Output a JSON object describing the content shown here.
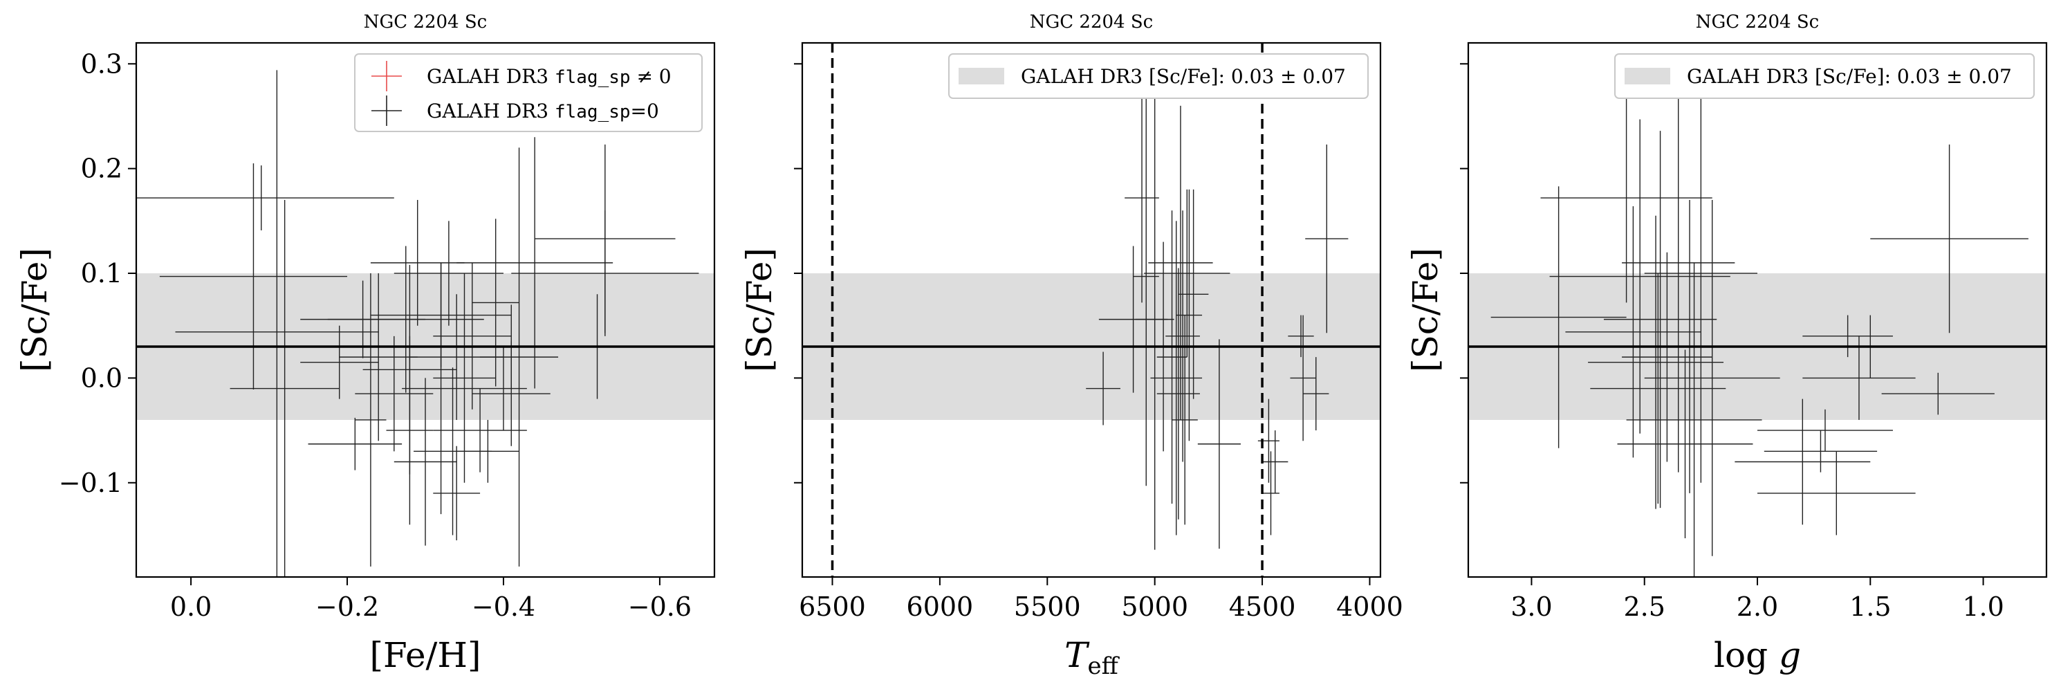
{
  "chart_data": [
    {
      "type": "scatter",
      "title": "NGC 2204 Sc",
      "xlabel": "[Fe/H]",
      "ylabel": "[Sc/Fe]",
      "xlim": [
        0.07,
        -0.67
      ],
      "ylim": [
        -0.19,
        0.32
      ],
      "xticks": [
        "0.0",
        "−0.2",
        "−0.4",
        "−0.6"
      ],
      "xtick_values": [
        0.0,
        -0.2,
        -0.4,
        -0.6
      ],
      "yticks": [
        "−0.1",
        "0.0",
        "0.1",
        "0.2",
        "0.3"
      ],
      "ytick_values": [
        -0.1,
        0.0,
        0.1,
        0.2,
        0.3
      ],
      "show_y_ticklabels": true,
      "legend": {
        "placement": "top-right",
        "entries": [
          {
            "label_prefix": "GALAH DR3 ",
            "code": "flag_sp",
            "label_suffix": " ≠ 0",
            "color": "#e84a4a",
            "marker": "plus"
          },
          {
            "label_prefix": "GALAH DR3 ",
            "code": "flag_sp",
            "label_suffix": "=0",
            "color": "#222222",
            "marker": "plus"
          }
        ]
      },
      "band": {
        "center": 0.03,
        "err": 0.07,
        "color": "#dddddd",
        "line_color": "#000000"
      },
      "vlines": [],
      "series": [
        {
          "points": [
            {
              "x": -0.09,
              "y": 0.172,
              "xerr": 0.17,
              "yerr": 0.031
            },
            {
              "x": -0.08,
              "y": 0.097,
              "xerr": 0.12,
              "yerr": 0.108
            },
            {
              "x": -0.11,
              "y": 0.044,
              "xerr": 0.13,
              "yerr": 0.25
            },
            {
              "x": -0.12,
              "y": -0.01,
              "xerr": 0.07,
              "yerr": 0.18
            },
            {
              "x": -0.19,
              "y": 0.015,
              "xerr": 0.05,
              "yerr": 0.035
            },
            {
              "x": -0.22,
              "y": 0.056,
              "xerr": 0.08,
              "yerr": 0.037
            },
            {
              "x": -0.24,
              "y": 0.02,
              "xerr": 0.05,
              "yerr": 0.08
            },
            {
              "x": -0.21,
              "y": -0.063,
              "xerr": 0.06,
              "yerr": 0.025
            },
            {
              "x": -0.23,
              "y": -0.04,
              "xerr": 0.02,
              "yerr": 0.14
            },
            {
              "x": -0.26,
              "y": -0.015,
              "xerr": 0.05,
              "yerr": 0.055
            },
            {
              "x": -0.275,
              "y": 0.056,
              "xerr": 0.1,
              "yerr": 0.07
            },
            {
              "x": -0.28,
              "y": 0.008,
              "xerr": 0.06,
              "yerr": 0.1
            },
            {
              "x": -0.28,
              "y": -0.05,
              "xerr": 0.03,
              "yerr": 0.09
            },
            {
              "x": -0.29,
              "y": 0.11,
              "xerr": 0.06,
              "yerr": 0.06
            },
            {
              "x": -0.3,
              "y": -0.08,
              "xerr": 0.04,
              "yerr": 0.08
            },
            {
              "x": -0.32,
              "y": -0.01,
              "xerr": 0.05,
              "yerr": 0.12
            },
            {
              "x": -0.32,
              "y": 0.06,
              "xerr": 0.09,
              "yerr": 0.05
            },
            {
              "x": -0.33,
              "y": 0.1,
              "xerr": 0.07,
              "yerr": 0.05
            },
            {
              "x": -0.34,
              "y": 0.02,
              "xerr": 0.06,
              "yerr": 0.06
            },
            {
              "x": -0.335,
              "y": -0.07,
              "xerr": 0.05,
              "yerr": 0.08
            },
            {
              "x": -0.34,
              "y": -0.11,
              "xerr": 0.03,
              "yerr": 0.045
            },
            {
              "x": -0.35,
              "y": 0.0,
              "xerr": 0.04,
              "yerr": 0.1
            },
            {
              "x": -0.36,
              "y": 0.04,
              "xerr": 0.05,
              "yerr": 0.07
            },
            {
              "x": -0.37,
              "y": -0.05,
              "xerr": 0.06,
              "yerr": 0.04
            },
            {
              "x": -0.38,
              "y": -0.07,
              "xerr": 0.04,
              "yerr": 0.03
            },
            {
              "x": -0.39,
              "y": 0.072,
              "xerr": 0.03,
              "yerr": 0.08
            },
            {
              "x": -0.4,
              "y": -0.01,
              "xerr": 0.03,
              "yerr": 0.04
            },
            {
              "x": -0.41,
              "y": 0.03,
              "xerr": 0.03,
              "yerr": 0.04
            },
            {
              "x": -0.42,
              "y": 0.02,
              "xerr": 0.05,
              "yerr": 0.2
            },
            {
              "x": -0.44,
              "y": 0.11,
              "xerr": 0.1,
              "yerr": 0.12
            },
            {
              "x": -0.41,
              "y": -0.015,
              "xerr": 0.05,
              "yerr": 0.05
            },
            {
              "x": -0.53,
              "y": 0.133,
              "xerr": 0.09,
              "yerr": 0.09
            },
            {
              "x": -0.53,
              "y": 0.1,
              "xerr": 0.12,
              "yerr": 0.06
            },
            {
              "x": -0.52,
              "y": 0.03,
              "xerr": 0.06,
              "yerr": 0.05
            }
          ]
        }
      ]
    },
    {
      "type": "scatter",
      "title": "NGC 2204 Sc",
      "xlabel": "T_eff",
      "ylabel": "[Sc/Fe]",
      "xlim": [
        6640,
        3950
      ],
      "ylim": [
        -0.19,
        0.32
      ],
      "xticks": [
        "6500",
        "6000",
        "5500",
        "5000",
        "4500",
        "4000"
      ],
      "xtick_values": [
        6500,
        6000,
        5500,
        5000,
        4500,
        4000
      ],
      "yticks": [
        "",
        "",
        "",
        "",
        ""
      ],
      "ytick_values": [
        -0.1,
        0.0,
        0.1,
        0.2,
        0.3
      ],
      "show_y_ticklabels": false,
      "legend": {
        "placement": "top-right",
        "entries": [
          {
            "label_prefix": "GALAH DR3 [Sc/Fe]: ",
            "code": "",
            "label_suffix": "0.03 ± 0.07",
            "color": "#dddddd",
            "marker": "patch"
          }
        ]
      },
      "band": {
        "center": 0.03,
        "err": 0.07,
        "color": "#dddddd",
        "line_color": "#000000"
      },
      "vlines": [
        6500,
        4500
      ],
      "series": [
        {
          "points": [
            {
              "x": 5240,
              "y": -0.01,
              "xerr": 80,
              "yerr": 0.035
            },
            {
              "x": 5060,
              "y": 0.172,
              "xerr": 80,
              "yerr": 0.1
            },
            {
              "x": 5100,
              "y": 0.056,
              "xerr": 160,
              "yerr": 0.07
            },
            {
              "x": 5040,
              "y": 0.097,
              "xerr": 60,
              "yerr": 0.2
            },
            {
              "x": 5000,
              "y": 0.056,
              "xerr": 90,
              "yerr": 0.22
            },
            {
              "x": 4960,
              "y": 0.03,
              "xerr": 100,
              "yerr": 0.1
            },
            {
              "x": 4920,
              "y": 0.02,
              "xerr": 70,
              "yerr": 0.14
            },
            {
              "x": 4900,
              "y": 0.0,
              "xerr": 120,
              "yerr": 0.15
            },
            {
              "x": 4890,
              "y": -0.015,
              "xerr": 100,
              "yerr": 0.12
            },
            {
              "x": 4880,
              "y": 0.11,
              "xerr": 150,
              "yerr": 0.15
            },
            {
              "x": 4870,
              "y": 0.04,
              "xerr": 80,
              "yerr": 0.12
            },
            {
              "x": 4860,
              "y": -0.04,
              "xerr": 60,
              "yerr": 0.1
            },
            {
              "x": 4850,
              "y": 0.1,
              "xerr": 200,
              "yerr": 0.08
            },
            {
              "x": 4840,
              "y": 0.06,
              "xerr": 60,
              "yerr": 0.12
            },
            {
              "x": 4820,
              "y": 0.08,
              "xerr": 70,
              "yerr": 0.1
            },
            {
              "x": 4700,
              "y": -0.063,
              "xerr": 100,
              "yerr": 0.1
            },
            {
              "x": 4470,
              "y": -0.06,
              "xerr": 50,
              "yerr": 0.04
            },
            {
              "x": 4460,
              "y": -0.11,
              "xerr": 40,
              "yerr": 0.04
            },
            {
              "x": 4440,
              "y": -0.08,
              "xerr": 60,
              "yerr": 0.03
            },
            {
              "x": 4320,
              "y": 0.04,
              "xerr": 60,
              "yerr": 0.02
            },
            {
              "x": 4310,
              "y": 0.0,
              "xerr": 60,
              "yerr": 0.06
            },
            {
              "x": 4250,
              "y": -0.015,
              "xerr": 60,
              "yerr": 0.035
            },
            {
              "x": 4200,
              "y": 0.133,
              "xerr": 100,
              "yerr": 0.09
            }
          ]
        }
      ]
    },
    {
      "type": "scatter",
      "title": "NGC 2204 Sc",
      "xlabel": "log g",
      "ylabel": "[Sc/Fe]",
      "xlim": [
        3.28,
        0.72
      ],
      "ylim": [
        -0.19,
        0.32
      ],
      "xticks": [
        "3.0",
        "2.5",
        "2.0",
        "1.5",
        "1.0"
      ],
      "xtick_values": [
        3.0,
        2.5,
        2.0,
        1.5,
        1.0
      ],
      "yticks": [
        "",
        "",
        "",
        "",
        ""
      ],
      "ytick_values": [
        -0.1,
        0.0,
        0.1,
        0.2,
        0.3
      ],
      "show_y_ticklabels": false,
      "legend": {
        "placement": "top-right",
        "entries": [
          {
            "label_prefix": "GALAH DR3 [Sc/Fe]: ",
            "code": "",
            "label_suffix": "0.03 ± 0.07",
            "color": "#dddddd",
            "marker": "patch"
          }
        ]
      },
      "band": {
        "center": 0.03,
        "err": 0.07,
        "color": "#dddddd",
        "line_color": "#000000"
      },
      "vlines": [],
      "series": [
        {
          "points": [
            {
              "x": 2.88,
              "y": 0.058,
              "xerr": 0.3,
              "yerr": 0.125
            },
            {
              "x": 2.58,
              "y": 0.172,
              "xerr": 0.38,
              "yerr": 0.1
            },
            {
              "x": 2.55,
              "y": 0.044,
              "xerr": 0.3,
              "yerr": 0.12
            },
            {
              "x": 2.52,
              "y": 0.097,
              "xerr": 0.4,
              "yerr": 0.15
            },
            {
              "x": 2.45,
              "y": 0.015,
              "xerr": 0.3,
              "yerr": 0.14
            },
            {
              "x": 2.44,
              "y": -0.01,
              "xerr": 0.3,
              "yerr": 0.11
            },
            {
              "x": 2.43,
              "y": 0.056,
              "xerr": 0.25,
              "yerr": 0.18
            },
            {
              "x": 2.4,
              "y": 0.02,
              "xerr": 0.2,
              "yerr": 0.1
            },
            {
              "x": 2.35,
              "y": 0.11,
              "xerr": 0.25,
              "yerr": 0.2
            },
            {
              "x": 2.32,
              "y": -0.063,
              "xerr": 0.3,
              "yerr": 0.09
            },
            {
              "x": 2.3,
              "y": 0.03,
              "xerr": 0.2,
              "yerr": 0.14
            },
            {
              "x": 2.28,
              "y": -0.04,
              "xerr": 0.3,
              "yerr": 0.15
            },
            {
              "x": 2.25,
              "y": 0.1,
              "xerr": 0.25,
              "yerr": 0.2
            },
            {
              "x": 2.2,
              "y": 0.0,
              "xerr": 0.3,
              "yerr": 0.17
            },
            {
              "x": 1.7,
              "y": -0.05,
              "xerr": 0.3,
              "yerr": 0.02
            },
            {
              "x": 1.72,
              "y": -0.07,
              "xerr": 0.25,
              "yerr": 0.02
            },
            {
              "x": 1.8,
              "y": -0.08,
              "xerr": 0.3,
              "yerr": 0.06
            },
            {
              "x": 1.65,
              "y": -0.11,
              "xerr": 0.35,
              "yerr": 0.04
            },
            {
              "x": 1.6,
              "y": 0.04,
              "xerr": 0.2,
              "yerr": 0.02
            },
            {
              "x": 1.55,
              "y": 0.0,
              "xerr": 0.25,
              "yerr": 0.04
            },
            {
              "x": 1.5,
              "y": 0.03,
              "xerr": 0.1,
              "yerr": 0.03
            },
            {
              "x": 1.2,
              "y": -0.015,
              "xerr": 0.25,
              "yerr": 0.02
            },
            {
              "x": 1.15,
              "y": 0.133,
              "xerr": 0.35,
              "yerr": 0.09
            }
          ]
        }
      ]
    }
  ]
}
